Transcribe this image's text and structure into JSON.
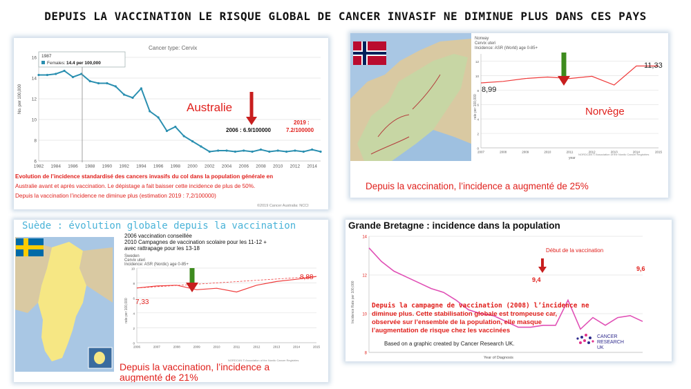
{
  "title": "DEPUIS LA VACCINATION LE RISQUE GLOBAL DE CANCER INVASIF NE DIMINUE PLUS DANS CES PAYS",
  "colors": {
    "australia_line": "#2a8fb0",
    "red_line": "#ef3b3b",
    "pink_line": "#e04fb5",
    "caption_red": "#e0201c",
    "arrow_green": "#3e8b1e",
    "arrow_red": "#c81e1e",
    "blue_text": "#2f6ff0"
  },
  "icons": [
    "norway-flag-icon",
    "sweden-flag-icon",
    "norway-map-image",
    "sweden-map-image",
    "cancer-research-uk-logo"
  ],
  "panels": {
    "australia": {
      "cancer_type": "Cancer type: Cervix",
      "tooltip_year": "1987",
      "tooltip_series": "Females:",
      "tooltip_value": "14.4 per 100,000",
      "ylabel": "No. per 100,000",
      "country_label": "Australie",
      "note_2006": "2006 : 6.9/100000",
      "note_2019_a": "2019 :",
      "note_2019_b": "7.2/100000",
      "caption": [
        "Evolution de l’incidence standardisé des cancers invasifs du col dans la population générale en",
        "Australie avant et après vaccination. Le dépistage a fait baisser cette incidence de plus de 50%.",
        "Depuis la vaccination l’incidence ne diminue plus (estimation 2019 : 7,2/100000)"
      ],
      "copyright": "©2019 Cancer Australia: NCCI"
    },
    "norway": {
      "header": [
        "Norway",
        "Cervix uteri",
        "Incidence: ASR (World) age 0-85+"
      ],
      "ylabel": "rate per 100,000",
      "xlabel": "year",
      "start_value": "8,99",
      "end_value": "11,33",
      "country_label": "Norvège",
      "caption": "Depuis la vaccination, l’incidence a augmenté de 25%",
      "source": "NORDCAN © Association of the Nordic Cancer Registries"
    },
    "sweden": {
      "heading": "Suède : évolution globale depuis la vaccination",
      "notes": [
        "2006 vaccination conseillée",
        "2010 Campagnes de vaccination scolaire pour les 11-12 +",
        "avec rattrapage pour les 13-18"
      ],
      "header": [
        "Sweden",
        "Cervix uteri",
        "Incidence: ASR (Nordic) age 0-85+"
      ],
      "ylabel": "rate per 100,000",
      "start_value": "7,33",
      "end_value": "8,88",
      "caption_a": "Depuis la vaccination, l’incidence a",
      "caption_b": "augmenté de 21%",
      "source": "NORDCAN © Association of the Nordic Cancer Registries"
    },
    "uk": {
      "heading": "Grande  Bretagne : incidence dans la population",
      "ylabel": "Incidence Rate per 100,000",
      "xlabel": "Year of Diagnosis",
      "vaccination_label": "Début de la vaccination",
      "value_2008": "9,4",
      "value_end": "9,6",
      "note": [
        "Depuis la campagne de vaccination (2008) l’incidence ne",
        "diminue plus. Cette stabilisation globale est trompeuse car,",
        "observée sur l’ensemble de la population, elle masque",
        "l’augmentation de risque chez les vaccinées"
      ],
      "credit": "Based on a graphic created by Cancer Research UK.",
      "logo_text": [
        "CANCER",
        "RESEARCH",
        "UK"
      ]
    }
  },
  "chart_data": [
    {
      "type": "line",
      "title": "Cancer type: Cervix",
      "ylabel": "No. per 100,000",
      "xlabel": "",
      "ylim": [
        6,
        16
      ],
      "yticks": [
        6,
        8,
        10,
        12,
        14,
        16
      ],
      "xticks": [
        "1982",
        "1984",
        "1986",
        "1988",
        "1990",
        "1992",
        "1994",
        "1996",
        "1998",
        "2000",
        "2002",
        "2004",
        "2006",
        "2008",
        "2010",
        "2012",
        "2014"
      ],
      "series": [
        {
          "name": "Females",
          "x": [
            1982,
            1983,
            1984,
            1985,
            1986,
            1987,
            1988,
            1989,
            1990,
            1991,
            1992,
            1993,
            1994,
            1995,
            1996,
            1997,
            1998,
            1999,
            2000,
            2001,
            2002,
            2003,
            2004,
            2005,
            2006,
            2007,
            2008,
            2009,
            2010,
            2011,
            2012,
            2013,
            2014,
            2015
          ],
          "values": [
            14.3,
            14.3,
            14.4,
            14.7,
            14.1,
            14.4,
            13.7,
            13.5,
            13.5,
            13.2,
            12.4,
            12.1,
            13.0,
            10.8,
            10.2,
            8.9,
            9.3,
            8.4,
            7.9,
            7.4,
            6.9,
            7.0,
            7.0,
            6.9,
            7.0,
            6.9,
            7.1,
            6.9,
            7.0,
            6.9,
            7.0,
            6.9,
            7.1,
            6.9
          ]
        }
      ]
    },
    {
      "type": "line",
      "title": "Norway",
      "ylabel": "rate per 100,000",
      "xlabel": "year",
      "ylim": [
        0,
        13
      ],
      "xticks": [
        "2007",
        "2008",
        "2009",
        "2010",
        "2011",
        "2012",
        "2013",
        "2014",
        "2015"
      ],
      "series": [
        {
          "name": "Cervix uteri",
          "x": [
            2007,
            2008,
            2009,
            2010,
            2011,
            2012,
            2013,
            2014,
            2015
          ],
          "values": [
            8.99,
            9.2,
            9.6,
            9.8,
            9.6,
            9.9,
            8.7,
            11.33,
            11.33
          ]
        }
      ]
    },
    {
      "type": "line",
      "title": "Sweden",
      "ylabel": "rate per 100,000",
      "ylim": [
        0,
        10
      ],
      "xticks": [
        "2006",
        "2007",
        "2008",
        "2009",
        "2010",
        "2011",
        "2012",
        "2013",
        "2014",
        "2015"
      ],
      "series": [
        {
          "name": "Cervix uteri",
          "x": [
            2006,
            2007,
            2008,
            2009,
            2010,
            2011,
            2012,
            2013,
            2014,
            2015
          ],
          "values": [
            7.33,
            7.6,
            7.7,
            7.1,
            7.3,
            6.8,
            7.7,
            8.2,
            8.5,
            8.88
          ]
        }
      ]
    },
    {
      "type": "line",
      "title": "Grande  Bretagne : incidence dans la population",
      "ylabel": "Incidence Rate per 100,000",
      "xlabel": "Year of Diagnosis",
      "ylim": [
        8,
        14
      ],
      "yticks": [
        8,
        10,
        12,
        14
      ],
      "series": [
        {
          "name": "Incidence",
          "x": [
            1993,
            1994,
            1995,
            1996,
            1997,
            1998,
            1999,
            2000,
            2001,
            2002,
            2003,
            2004,
            2005,
            2006,
            2007,
            2008,
            2009,
            2010,
            2011,
            2012,
            2013,
            2014,
            2015
          ],
          "values": [
            13.4,
            12.7,
            12.2,
            11.9,
            11.6,
            11.3,
            11.1,
            10.7,
            10.2,
            10.0,
            9.9,
            9.6,
            9.3,
            9.3,
            9.4,
            9.4,
            10.7,
            9.2,
            9.8,
            9.4,
            9.8,
            9.9,
            9.6
          ]
        }
      ]
    }
  ]
}
